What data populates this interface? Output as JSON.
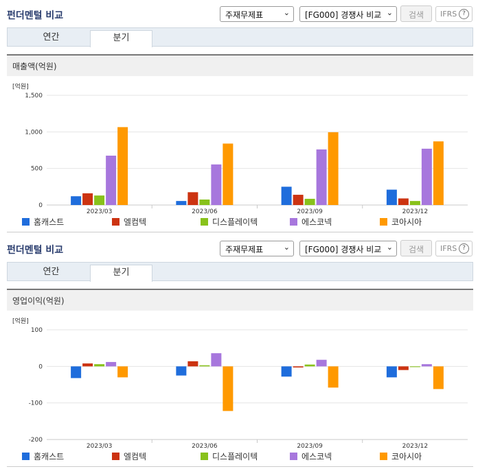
{
  "colors": [
    "#1f6ddc",
    "#cc3311",
    "#88c21b",
    "#a777dd",
    "#ff9900"
  ],
  "sections": [
    {
      "title": "펀더멘털 비교",
      "select1": "주재무제표",
      "select2": "[FG000] 경쟁사 비교",
      "search_label": "검색",
      "ifrs_label": "IFRS",
      "help_icon": "?",
      "tabs": [
        "연간",
        "분기"
      ],
      "active_tab": "분기",
      "metric": "매출액(억원)",
      "unit": "[억원]",
      "legend": [
        "홈캐스트",
        "엘컴텍",
        "디스플레이텍",
        "에스코넥",
        "코아시아"
      ]
    },
    {
      "title": "펀더멘털 비교",
      "select1": "주재무제표",
      "select2": "[FG000] 경쟁사 비교",
      "search_label": "검색",
      "ifrs_label": "IFRS",
      "help_icon": "?",
      "tabs": [
        "연간",
        "분기"
      ],
      "active_tab": "분기",
      "metric": "영업이익(억원)",
      "unit": "[억원]",
      "legend": [
        "홈캐스트",
        "엘컴텍",
        "디스플레이텍",
        "에스코넥",
        "코아시아"
      ]
    }
  ],
  "chart_data": [
    {
      "type": "bar",
      "categories": [
        "2023/03",
        "2023/06",
        "2023/09",
        "2023/12"
      ],
      "ylim": [
        0,
        1500
      ],
      "yticks": [
        "0",
        "500",
        "1,000",
        "1,500"
      ],
      "ytick_values": [
        0,
        500,
        1000,
        1500
      ],
      "series": [
        {
          "name": "홈캐스트",
          "values": [
            120,
            55,
            250,
            210
          ]
        },
        {
          "name": "엘컴텍",
          "values": [
            160,
            175,
            140,
            90
          ]
        },
        {
          "name": "디스플레이텍",
          "values": [
            130,
            75,
            85,
            55
          ]
        },
        {
          "name": "에스코넥",
          "values": [
            675,
            555,
            760,
            770
          ]
        },
        {
          "name": "코아시아",
          "values": [
            1065,
            840,
            995,
            870
          ]
        }
      ]
    },
    {
      "type": "bar",
      "categories": [
        "2023/03",
        "2023/06",
        "2023/09",
        "2023/12"
      ],
      "ylim": [
        -200,
        100
      ],
      "yticks": [
        "-200",
        "-100",
        "0",
        "100"
      ],
      "ytick_values": [
        -200,
        -100,
        0,
        100
      ],
      "series": [
        {
          "name": "홈캐스트",
          "values": [
            -32,
            -25,
            -28,
            -30
          ]
        },
        {
          "name": "엘컴텍",
          "values": [
            8,
            14,
            -3,
            -10
          ]
        },
        {
          "name": "디스플레이텍",
          "values": [
            6,
            3,
            5,
            -2
          ]
        },
        {
          "name": "에스코넥",
          "values": [
            12,
            36,
            18,
            6
          ]
        },
        {
          "name": "코아시아",
          "values": [
            -30,
            -122,
            -58,
            -62
          ]
        }
      ]
    }
  ]
}
